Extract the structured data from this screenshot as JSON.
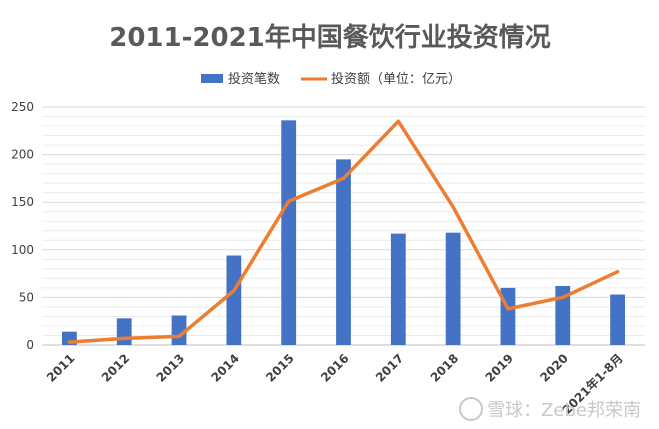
{
  "chart_data": {
    "type": "bar+line",
    "title": "2011-2021年中国餐饮行业投资情况",
    "categories": [
      "2011",
      "2012",
      "2013",
      "2014",
      "2015",
      "2016",
      "2017",
      "2018",
      "2019",
      "2020",
      "2021年1-8月"
    ],
    "series": [
      {
        "name": "投资笔数",
        "type": "bar",
        "color": "#4472C4",
        "values": [
          14,
          28,
          31,
          94,
          236,
          195,
          117,
          118,
          60,
          62,
          53
        ]
      },
      {
        "name": "投资额（单位：亿元）",
        "type": "line",
        "color": "#ED7D31",
        "values": [
          3,
          7,
          9,
          57,
          151,
          175,
          235,
          145,
          38,
          50,
          77
        ]
      }
    ],
    "ylim": [
      0,
      250
    ],
    "yticks": [
      0,
      50,
      100,
      150,
      200,
      250
    ],
    "grid": true,
    "legend": "top"
  },
  "watermark": "雪球：Zebe邦荣南"
}
